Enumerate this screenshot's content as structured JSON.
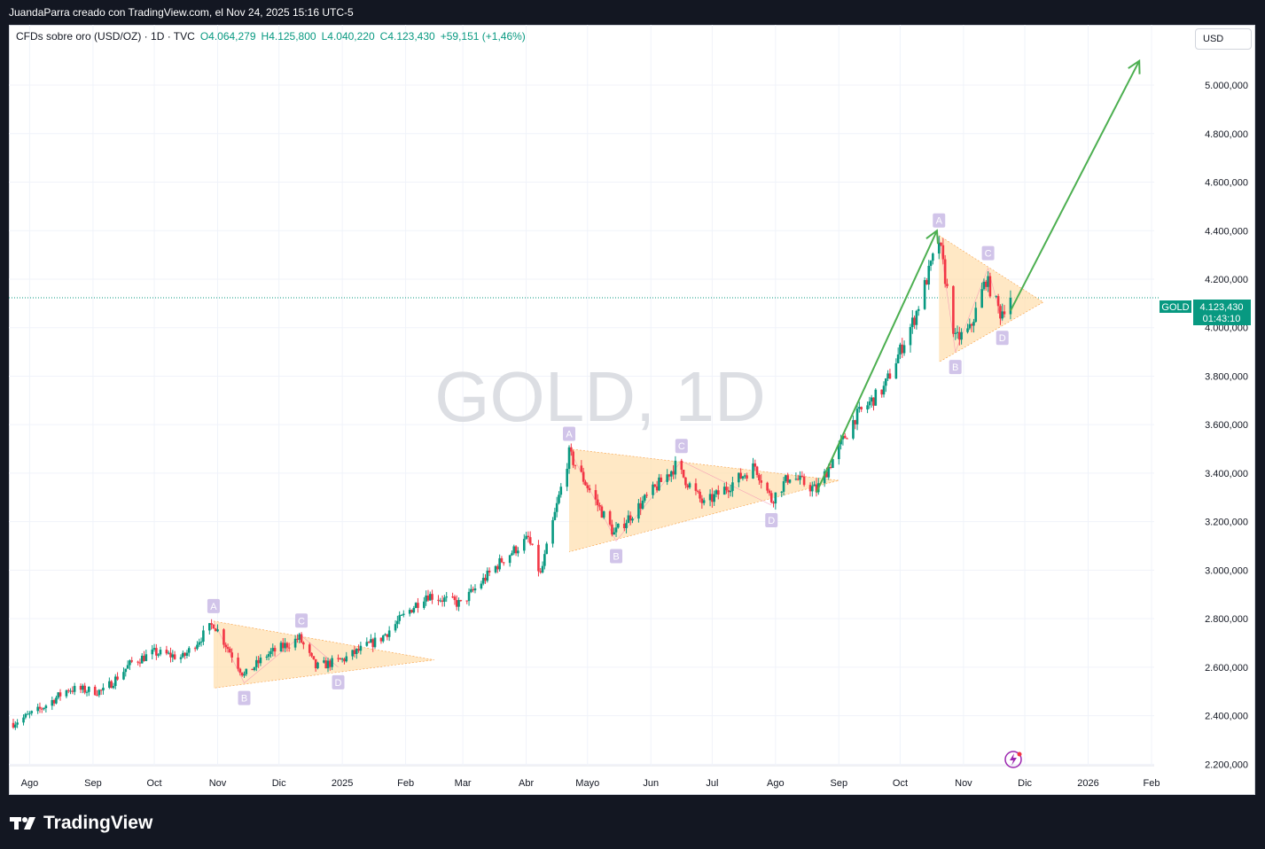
{
  "header": {
    "publish_info": "JuandaParra creado con TradingView.com, el Nov 24, 2025 15:16 UTC-5"
  },
  "legend": {
    "symbol": "CFDs sobre oro (USD/OZ) · 1D · TVC",
    "open": "O4.064,279",
    "high": "H4.125,800",
    "low": "L4.040,220",
    "close": "C4.123,430",
    "change": "+59,151 (+1,46%)"
  },
  "currency_button": "USD",
  "watermark": "GOLD, 1D",
  "price_tag": {
    "symbol": "GOLD",
    "price": "4.123,430",
    "countdown": "01:43:10",
    "value": 4123.43
  },
  "footer": {
    "brand": "TradingView"
  },
  "colors": {
    "up": "#089981",
    "down": "#f23645",
    "triangle_fill": "#ffe0b2",
    "arrow": "#4caf50",
    "label_bg": "#d1c4e9",
    "label_text": "#9575cd"
  },
  "chart_data": {
    "type": "candlestick",
    "interval": "1D",
    "ylim": [
      2150,
      5150
    ],
    "y_ticks": [
      {
        "value": 2200,
        "label": "2.200,000"
      },
      {
        "value": 2400,
        "label": "2.400,000"
      },
      {
        "value": 2600,
        "label": "2.600,000"
      },
      {
        "value": 2800,
        "label": "2.800,000"
      },
      {
        "value": 3000,
        "label": "3.000,000"
      },
      {
        "value": 3200,
        "label": "3.200,000"
      },
      {
        "value": 3400,
        "label": "3.400,000"
      },
      {
        "value": 3600,
        "label": "3.600,000"
      },
      {
        "value": 3800,
        "label": "3.800,000"
      },
      {
        "value": 4000,
        "label": "4.000,000"
      },
      {
        "value": 4200,
        "label": "4.200,000"
      },
      {
        "value": 4400,
        "label": "4.400,000"
      },
      {
        "value": 4600,
        "label": "4.600,000"
      },
      {
        "value": 4800,
        "label": "4.800,000"
      },
      {
        "value": 5000,
        "label": "5.000,000"
      }
    ],
    "x_ticks": [
      {
        "date": "2024-08-01",
        "label": "Ago"
      },
      {
        "date": "2024-09-01",
        "label": "Sep"
      },
      {
        "date": "2024-10-01",
        "label": "Oct"
      },
      {
        "date": "2024-11-01",
        "label": "Nov"
      },
      {
        "date": "2024-12-01",
        "label": "Dic"
      },
      {
        "date": "2025-01-01",
        "label": "2025"
      },
      {
        "date": "2025-02-01",
        "label": "Feb"
      },
      {
        "date": "2025-03-01",
        "label": "Mar"
      },
      {
        "date": "2025-04-01",
        "label": "Abr"
      },
      {
        "date": "2025-05-01",
        "label": "Mayo"
      },
      {
        "date": "2025-06-01",
        "label": "Jun"
      },
      {
        "date": "2025-07-01",
        "label": "Jul"
      },
      {
        "date": "2025-08-01",
        "label": "Ago"
      },
      {
        "date": "2025-09-01",
        "label": "Sep"
      },
      {
        "date": "2025-10-01",
        "label": "Oct"
      },
      {
        "date": "2025-11-01",
        "label": "Nov"
      },
      {
        "date": "2025-12-01",
        "label": "Dic"
      },
      {
        "date": "2026-01-01",
        "label": "2026"
      },
      {
        "date": "2026-02-01",
        "label": "Feb"
      }
    ],
    "price_path": [
      {
        "date": "2024-07-24",
        "close": 2370
      },
      {
        "date": "2024-08-05",
        "close": 2420
      },
      {
        "date": "2024-08-20",
        "close": 2510
      },
      {
        "date": "2024-09-06",
        "close": 2500
      },
      {
        "date": "2024-09-20",
        "close": 2620
      },
      {
        "date": "2024-10-01",
        "close": 2660
      },
      {
        "date": "2024-10-15",
        "close": 2640
      },
      {
        "date": "2024-10-30",
        "close": 2780
      },
      {
        "date": "2024-11-14",
        "close": 2565
      },
      {
        "date": "2024-11-25",
        "close": 2650
      },
      {
        "date": "2024-12-11",
        "close": 2720
      },
      {
        "date": "2024-12-19",
        "close": 2600
      },
      {
        "date": "2025-01-01",
        "close": 2630
      },
      {
        "date": "2025-01-20",
        "close": 2720
      },
      {
        "date": "2025-02-11",
        "close": 2900
      },
      {
        "date": "2025-02-28",
        "close": 2860
      },
      {
        "date": "2025-03-20",
        "close": 3040
      },
      {
        "date": "2025-04-02",
        "close": 3130
      },
      {
        "date": "2025-04-08",
        "close": 2980
      },
      {
        "date": "2025-04-22",
        "close": 3480
      },
      {
        "date": "2025-05-14",
        "close": 3150
      },
      {
        "date": "2025-06-13",
        "close": 3430
      },
      {
        "date": "2025-06-27",
        "close": 3270
      },
      {
        "date": "2025-07-22",
        "close": 3430
      },
      {
        "date": "2025-07-30",
        "close": 3290
      },
      {
        "date": "2025-08-08",
        "close": 3390
      },
      {
        "date": "2025-08-21",
        "close": 3330
      },
      {
        "date": "2025-09-09",
        "close": 3630
      },
      {
        "date": "2025-09-23",
        "close": 3750
      },
      {
        "date": "2025-10-08",
        "close": 4040
      },
      {
        "date": "2025-10-20",
        "close": 4360
      },
      {
        "date": "2025-10-28",
        "close": 3950
      },
      {
        "date": "2025-11-04",
        "close": 3990
      },
      {
        "date": "2025-11-12",
        "close": 4200
      },
      {
        "date": "2025-11-19",
        "close": 4060
      },
      {
        "date": "2025-11-24",
        "close": 4123.43
      }
    ],
    "patterns": [
      {
        "points": [
          {
            "label": "A",
            "date": "2024-10-30",
            "price": 2790
          },
          {
            "label": "B",
            "date": "2024-11-14",
            "price": 2535
          },
          {
            "label": "C",
            "date": "2024-12-12",
            "price": 2730
          },
          {
            "label": "D",
            "date": "2024-12-30",
            "price": 2600
          }
        ],
        "apex": {
          "date": "2025-02-15",
          "price": 2630
        }
      },
      {
        "points": [
          {
            "label": "A",
            "date": "2025-04-22",
            "price": 3500
          },
          {
            "label": "B",
            "date": "2025-05-15",
            "price": 3120
          },
          {
            "label": "C",
            "date": "2025-06-16",
            "price": 3450
          },
          {
            "label": "D",
            "date": "2025-07-30",
            "price": 3268
          }
        ],
        "apex": {
          "date": "2025-09-01",
          "price": 3370
        }
      },
      {
        "points": [
          {
            "label": "A",
            "date": "2025-10-20",
            "price": 4380
          },
          {
            "label": "B",
            "date": "2025-10-28",
            "price": 3900
          },
          {
            "label": "C",
            "date": "2025-11-13",
            "price": 4245
          },
          {
            "label": "D",
            "date": "2025-11-20",
            "price": 4020
          }
        ],
        "apex": {
          "date": "2025-12-10",
          "price": 4105
        }
      }
    ],
    "projection_arrows": [
      {
        "from": {
          "date": "2025-08-21",
          "price": 3320
        },
        "to": {
          "date": "2025-10-19",
          "price": 4400
        }
      },
      {
        "from": {
          "date": "2025-11-24",
          "price": 4070
        },
        "to": {
          "date": "2026-01-26",
          "price": 5100
        }
      }
    ],
    "last_price_line": 4123.43
  }
}
